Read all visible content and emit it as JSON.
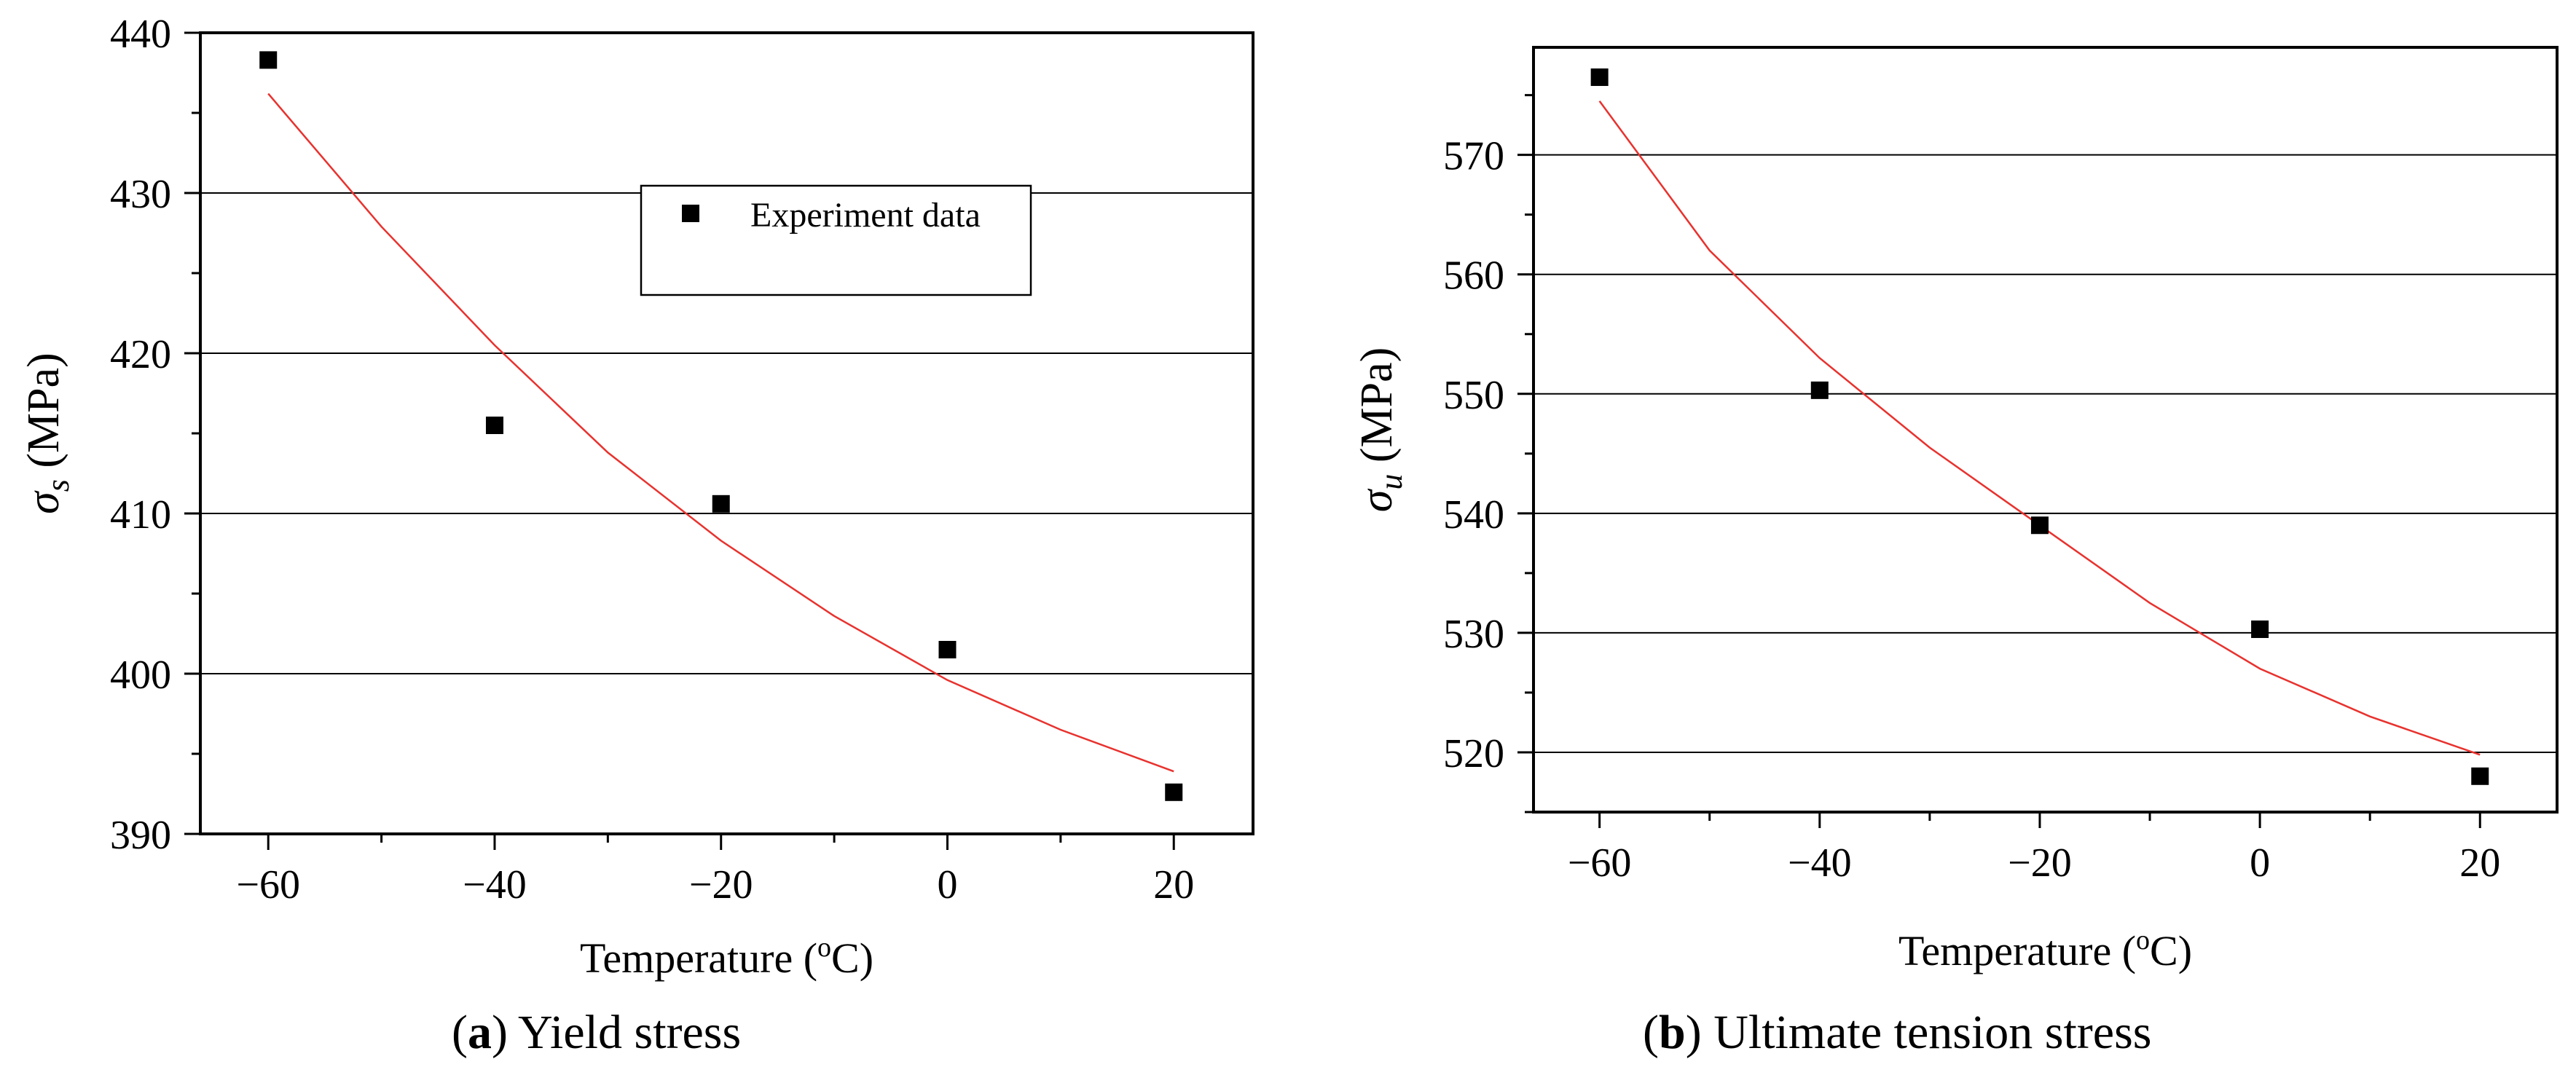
{
  "colors": {
    "axis": "#000000",
    "grid": "#000000",
    "fit_line": "#e8322e",
    "marker": "#000000"
  },
  "chart_data": [
    {
      "id": "a",
      "type": "scatter",
      "series": [
        {
          "name": "Experiment data",
          "x": [
            -60,
            -40,
            -20,
            0,
            20
          ],
          "y": [
            438.3,
            415.5,
            410.6,
            401.5,
            392.6
          ]
        }
      ],
      "fit_curve": {
        "x": [
          -60,
          -50,
          -40,
          -30,
          -20,
          -10,
          0,
          10,
          20
        ],
        "y": [
          436.2,
          427.9,
          420.5,
          413.8,
          408.3,
          403.6,
          399.6,
          396.5,
          393.9
        ]
      },
      "xlabel_prefix": "Temperature (",
      "xlabel_sup": "o",
      "xlabel_suffix": "C)",
      "ylabel_symbol": "σ",
      "ylabel_sub": "s",
      "ylabel_unit": " (MPa)",
      "xlim": [
        -66,
        27
      ],
      "ylim": [
        390,
        440
      ],
      "xticks": [
        -60,
        -40,
        -20,
        0,
        20
      ],
      "xtick_labels": [
        "−60",
        "−40",
        "−20",
        "0",
        "20"
      ],
      "yticks": [
        390,
        400,
        410,
        420,
        430,
        440
      ],
      "ytick_labels": [
        "390",
        "400",
        "410",
        "420",
        "430",
        "440"
      ],
      "grid": true,
      "legend": {
        "placement": "upper-center",
        "label": "Experiment data"
      },
      "caption_letter": "a",
      "caption_text": " Yield stress"
    },
    {
      "id": "b",
      "type": "scatter",
      "series": [
        {
          "name": "Experiment data",
          "x": [
            -60,
            -40,
            -20,
            0,
            20
          ],
          "y": [
            576.5,
            550.3,
            539.0,
            530.3,
            518.0
          ]
        }
      ],
      "fit_curve": {
        "x": [
          -60,
          -50,
          -40,
          -30,
          -20,
          -10,
          0,
          10,
          20
        ],
        "y": [
          574.5,
          562.0,
          553.0,
          545.5,
          539.0,
          532.5,
          527.0,
          523.0,
          519.8
        ]
      },
      "xlabel_prefix": "Temperature (",
      "xlabel_sup": "o",
      "xlabel_suffix": "C)",
      "ylabel_symbol": "σ",
      "ylabel_sub": "u",
      "ylabel_unit": " (MPa)",
      "xlim": [
        -66,
        27
      ],
      "ylim": [
        515,
        579
      ],
      "xticks": [
        -60,
        -40,
        -20,
        0,
        20
      ],
      "xtick_labels": [
        "−60",
        "−40",
        "−20",
        "0",
        "20"
      ],
      "yticks": [
        520,
        530,
        540,
        550,
        560,
        570
      ],
      "ytick_labels": [
        "520",
        "530",
        "540",
        "550",
        "560",
        "570"
      ],
      "grid": true,
      "legend": null,
      "caption_letter": "b",
      "caption_text": " Ultimate tension stress"
    }
  ]
}
